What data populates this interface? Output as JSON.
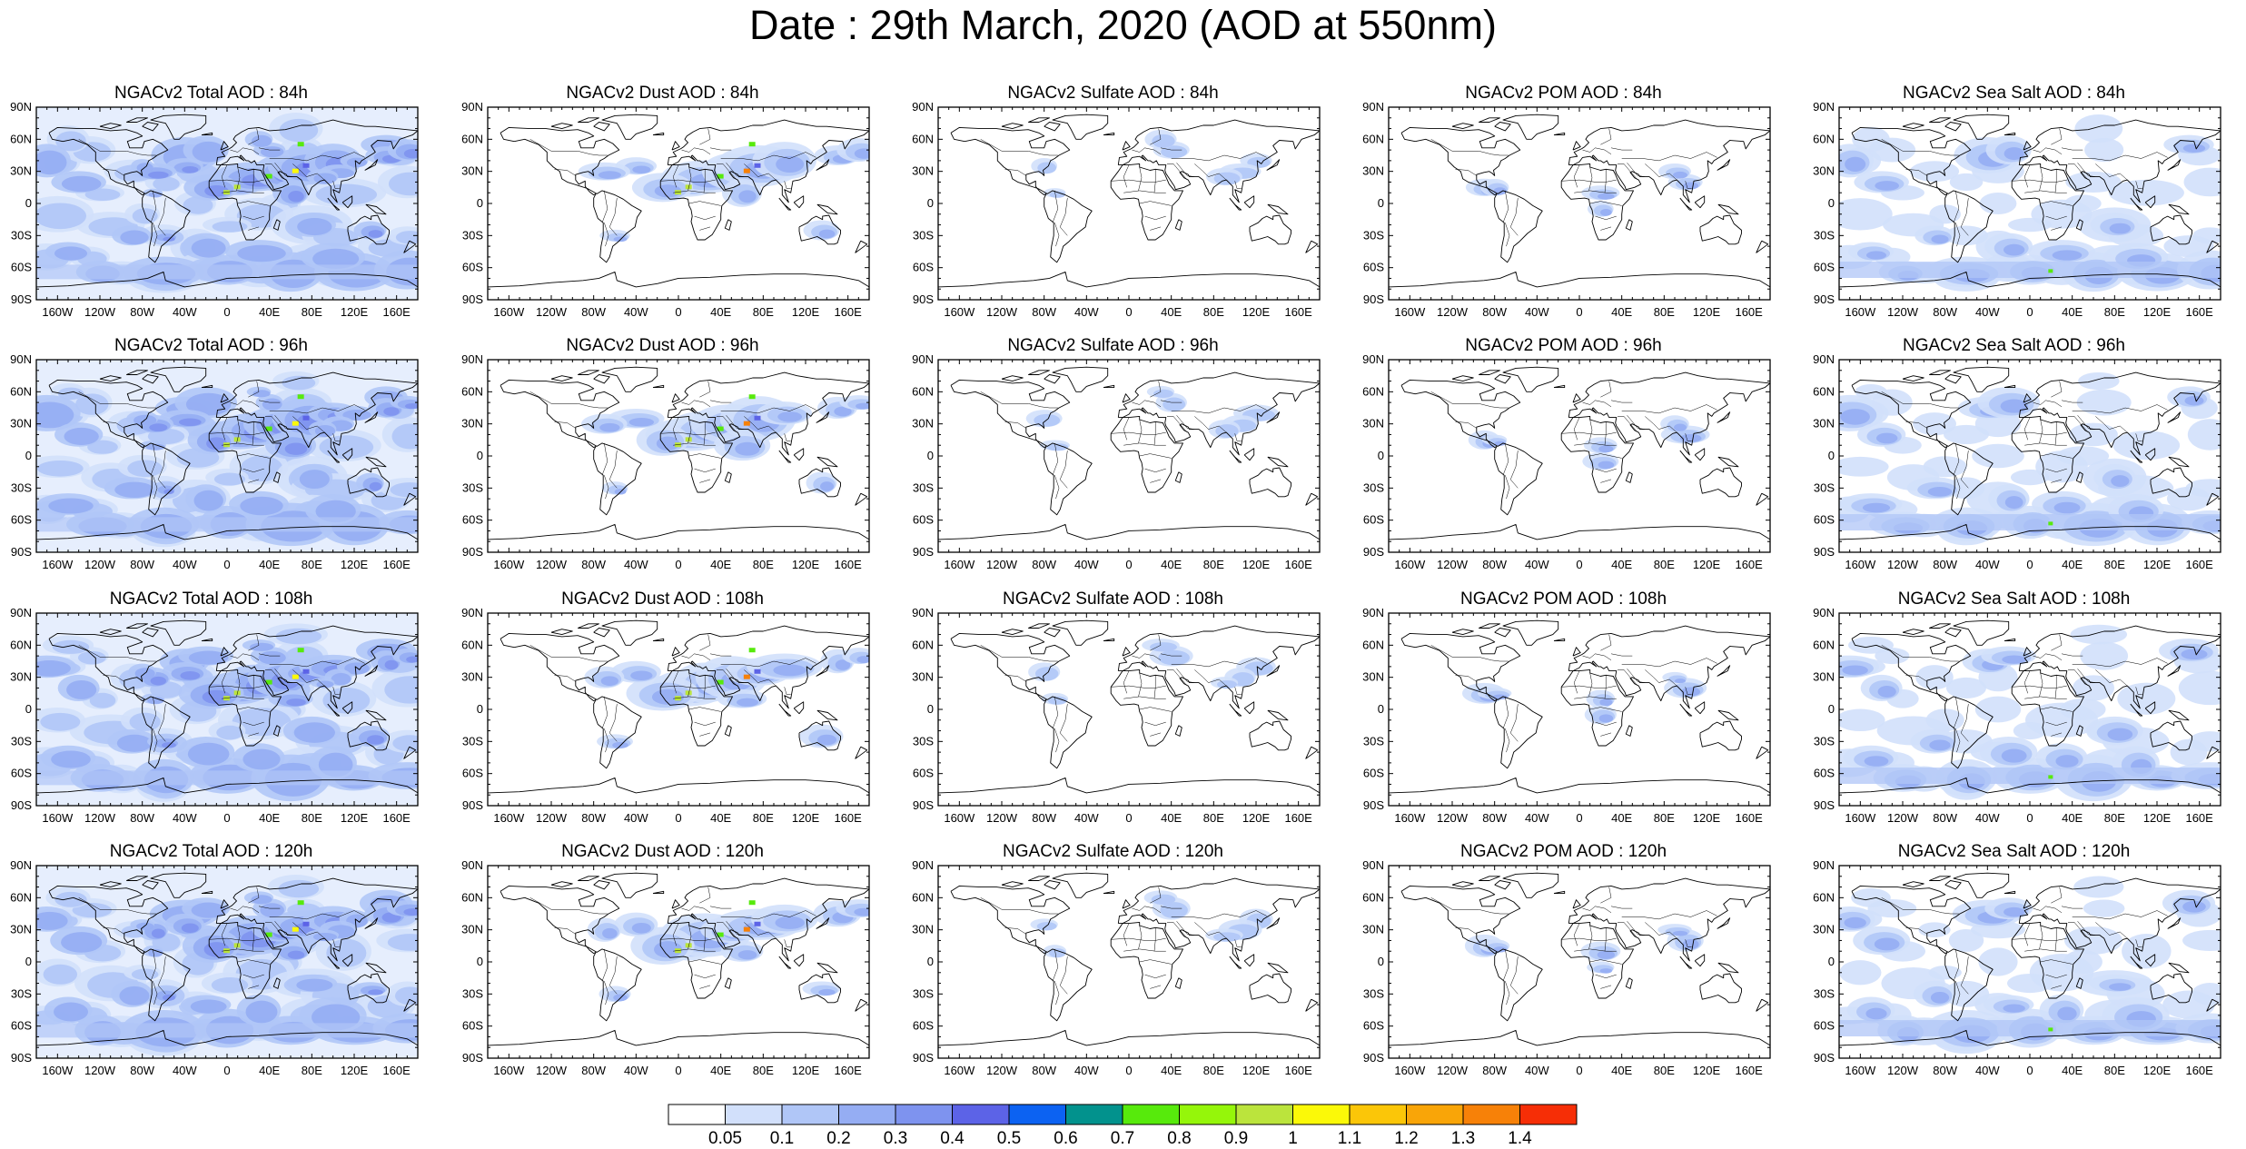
{
  "title": "Date : 29th March, 2020 (AOD at 550nm)",
  "panel_titles": [
    [
      "NGACv2 Total AOD : 84h",
      "NGACv2 Dust AOD : 84h",
      "NGACv2 Sulfate AOD : 84h",
      "NGACv2 POM AOD : 84h",
      "NGACv2 Sea Salt AOD : 84h"
    ],
    [
      "NGACv2 Total AOD : 96h",
      "NGACv2 Dust AOD : 96h",
      "NGACv2 Sulfate AOD : 96h",
      "NGACv2 POM AOD : 96h",
      "NGACv2 Sea Salt AOD : 96h"
    ],
    [
      "NGACv2 Total AOD : 108h",
      "NGACv2 Dust AOD : 108h",
      "NGACv2 Sulfate AOD : 108h",
      "NGACv2 POM AOD : 108h",
      "NGACv2 Sea Salt AOD : 108h"
    ],
    [
      "NGACv2 Total AOD : 120h",
      "NGACv2 Dust AOD : 120h",
      "NGACv2 Sulfate AOD : 120h",
      "NGACv2 POM AOD : 120h",
      "NGACv2 Sea Salt  AOD : 120h"
    ]
  ],
  "lat_ticks": [
    {
      "label": "90N",
      "lat": 90
    },
    {
      "label": "60N",
      "lat": 60
    },
    {
      "label": "30N",
      "lat": 30
    },
    {
      "label": "0",
      "lat": 0
    },
    {
      "label": "30S",
      "lat": -30
    },
    {
      "label": "60S",
      "lat": -60
    },
    {
      "label": "90S",
      "lat": -90
    }
  ],
  "lon_ticks": [
    {
      "label": "160W",
      "lon": -160
    },
    {
      "label": "120W",
      "lon": -120
    },
    {
      "label": "80W",
      "lon": -80
    },
    {
      "label": "40W",
      "lon": -40
    },
    {
      "label": "0",
      "lon": 0
    },
    {
      "label": "40E",
      "lon": 40
    },
    {
      "label": "80E",
      "lon": 80
    },
    {
      "label": "120E",
      "lon": 120
    },
    {
      "label": "160E",
      "lon": 160
    }
  ],
  "map_extent": {
    "lon": [
      -180,
      180
    ],
    "lat": [
      -90,
      90
    ]
  },
  "colorbar": {
    "labels": [
      "0.05",
      "0.1",
      "0.2",
      "0.3",
      "0.4",
      "0.5",
      "0.6",
      "0.7",
      "0.8",
      "0.9",
      "1",
      "1.1",
      "1.2",
      "1.3",
      "1.4"
    ],
    "colors": [
      "#ffffff",
      "#d2e0fb",
      "#b0c6f7",
      "#95adf3",
      "#7e93ef",
      "#5c63e7",
      "#0c62f2",
      "#02928d",
      "#57ea0c",
      "#95f60a",
      "#bbe43c",
      "#fbf908",
      "#fbc608",
      "#f9a508",
      "#f78108",
      "#f62e06"
    ]
  }
}
